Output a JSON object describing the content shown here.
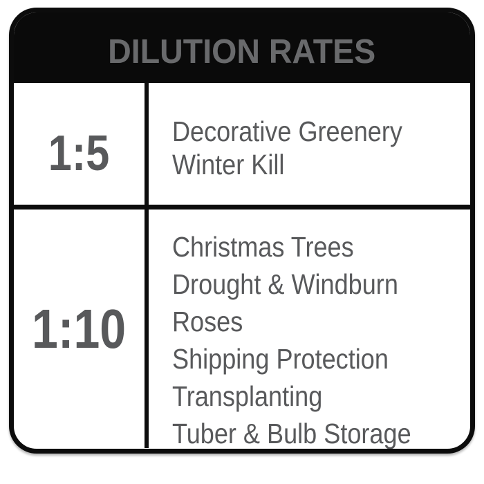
{
  "header": {
    "title": "DILUTION RATES"
  },
  "table": {
    "rows": [
      {
        "ratio": "1:5",
        "uses": [
          "Decorative Greenery",
          "Winter Kill"
        ]
      },
      {
        "ratio": "1:10",
        "uses": [
          "Christmas Trees",
          "Drought & Windburn",
          "Roses",
          "Shipping Protection",
          "Transplanting",
          "Tuber & Bulb Storage"
        ]
      }
    ]
  },
  "colors": {
    "header_background": "#0a0a0a",
    "header_text": "#696a6c",
    "body_text": "#58595b",
    "border": "#0c0c0c",
    "background": "#ffffff"
  }
}
